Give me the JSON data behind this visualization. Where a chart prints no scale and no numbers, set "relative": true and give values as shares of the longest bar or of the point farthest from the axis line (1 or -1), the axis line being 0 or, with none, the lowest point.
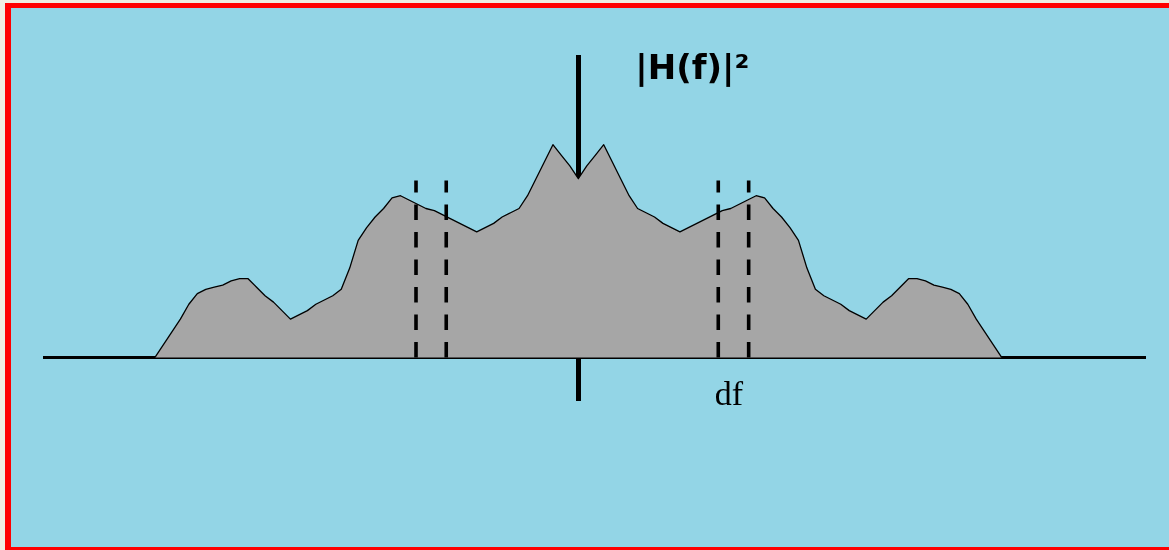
{
  "chart_data": {
    "type": "area",
    "relative": true,
    "ylabel": "|H(f)|²",
    "categories": [
      null,
      null,
      null,
      null,
      null,
      null,
      null,
      null,
      null,
      null,
      null,
      null,
      null,
      null,
      null,
      null,
      null,
      null,
      null,
      null,
      null,
      null,
      null,
      null,
      null,
      null,
      null,
      null,
      null,
      null,
      null,
      null,
      null,
      null,
      null,
      null,
      null,
      null,
      null,
      null,
      null,
      null,
      null,
      null,
      null,
      null,
      null,
      null,
      null,
      null,
      null,
      null,
      null,
      null,
      null,
      null,
      null,
      null,
      null,
      null,
      null,
      null,
      null,
      null,
      null,
      null,
      null,
      null,
      null,
      null,
      null,
      null,
      null,
      null,
      null,
      null,
      null,
      null,
      null,
      null,
      null,
      null,
      null,
      null,
      null,
      null,
      null,
      null,
      null,
      null,
      null,
      null,
      null,
      null,
      null,
      null,
      null,
      null,
      null,
      null,
      null,
      null,
      null,
      null,
      null,
      null,
      null,
      null,
      null,
      null,
      null,
      null,
      null,
      null,
      null,
      null,
      null,
      null,
      null,
      null,
      null,
      null,
      null,
      null,
      null,
      null,
      null,
      null,
      null,
      null,
      null
    ],
    "values": [
      null,
      null,
      null,
      null,
      null,
      null,
      null,
      null,
      null,
      null,
      null,
      null,
      null,
      0,
      0.06,
      0.12,
      0.18,
      0.25,
      0.3,
      0.32,
      0.33,
      0.34,
      0.36,
      0.37,
      0.37,
      0.33,
      0.29,
      0.26,
      0.22,
      0.18,
      0.2,
      0.22,
      0.25,
      0.27,
      0.29,
      0.32,
      0.42,
      0.55,
      0.61,
      0.66,
      0.7,
      0.75,
      0.76,
      0.74,
      0.72,
      0.7,
      0.69,
      0.67,
      0.65,
      0.63,
      0.61,
      0.59,
      0.61,
      0.63,
      0.66,
      0.68,
      0.7,
      0.76,
      0.84,
      0.92,
      1,
      0.95,
      0.9,
      0.84,
      0.9,
      0.95,
      1,
      0.92,
      0.84,
      0.76,
      0.7,
      0.68,
      0.66,
      0.63,
      0.61,
      0.59,
      0.61,
      0.63,
      0.65,
      0.67,
      0.69,
      0.7,
      0.72,
      0.74,
      0.76,
      0.75,
      0.7,
      0.66,
      0.61,
      0.55,
      0.42,
      0.32,
      0.29,
      0.27,
      0.25,
      0.22,
      0.2,
      0.18,
      0.22,
      0.26,
      0.29,
      0.33,
      0.37,
      0.37,
      0.36,
      0.34,
      0.33,
      0.32,
      0.3,
      0.25,
      0.18,
      0.12,
      0.06,
      0,
      null,
      null,
      null,
      null,
      null,
      null,
      null,
      null,
      null,
      null,
      null,
      null,
      null,
      null,
      null,
      null,
      null
    ],
    "color": "#a6a6a6",
    "marker": "none",
    "annotations": [
      "df"
    ]
  }
}
